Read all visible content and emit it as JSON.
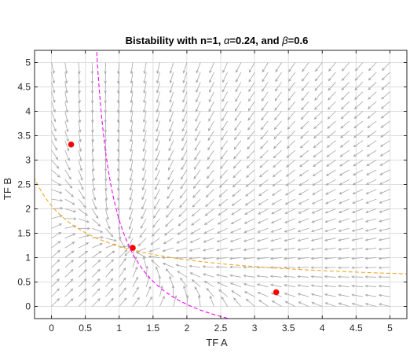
{
  "chart_data": {
    "type": "scatter",
    "title": {
      "prefix": "Bistability with n=1, ",
      "alpha_symbol": "α",
      "alpha_text": "=0.24, and ",
      "beta_symbol": "β",
      "beta_text": "=0.6"
    },
    "xlabel": "TF A",
    "ylabel": "TF B",
    "xlim": [
      -0.25,
      5.25
    ],
    "ylim": [
      -0.25,
      5.25
    ],
    "xticks": [
      0,
      0.5,
      1,
      1.5,
      2,
      2.5,
      3,
      3.5,
      4,
      4.5,
      5
    ],
    "yticks": [
      0,
      0.5,
      1,
      1.5,
      2,
      2.5,
      3,
      3.5,
      4,
      4.5,
      5
    ],
    "xtick_labels": [
      "0",
      "0.5",
      "1",
      "1.5",
      "2",
      "2.5",
      "3",
      "3.5",
      "4",
      "4.5",
      "5"
    ],
    "ytick_labels": [
      "0",
      "0.5",
      "1",
      "1.5",
      "2",
      "2.5",
      "3",
      "3.5",
      "4",
      "4.5",
      "5"
    ],
    "grid": true,
    "model": {
      "n": 1,
      "alpha": 0.24,
      "beta": 0.6
    },
    "vector_field": {
      "x_start": 0,
      "x_end": 5,
      "y_start": 0,
      "y_end": 5,
      "step": 0.2,
      "color": "#a6a6a6"
    },
    "nullclines": [
      {
        "variable": "dA/dt=0",
        "color": "#ff00ff",
        "style": "dashed"
      },
      {
        "variable": "dB/dt=0",
        "color": "#f5a623",
        "style": "dashed"
      }
    ],
    "fixed_points": {
      "color": "#ff0000",
      "x": [
        0.29,
        1.2,
        3.32
      ],
      "y": [
        3.32,
        1.2,
        0.29
      ]
    }
  }
}
